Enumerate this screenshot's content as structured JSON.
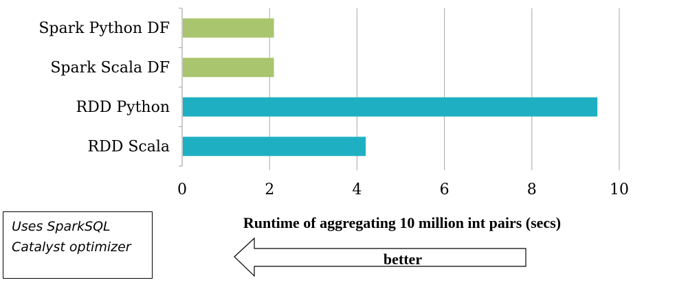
{
  "chart_data": {
    "type": "bar",
    "orientation": "horizontal",
    "categories": [
      "Spark Python DF",
      "Spark Scala DF",
      "RDD Python",
      "RDD Scala"
    ],
    "values": [
      2.1,
      2.1,
      9.5,
      4.2
    ],
    "colors": [
      "#a9c56d",
      "#a9c56d",
      "#1eb0c2",
      "#1eb0c2"
    ],
    "xlabel": "Runtime of aggregating 10 million int pairs  (secs)",
    "xlim": [
      0,
      10
    ],
    "xticks": [
      "0",
      "2",
      "4",
      "6",
      "8",
      "10"
    ],
    "grid": "vertical gridlines"
  },
  "note": {
    "line1": "Uses SparkSQL",
    "line2": "Catalyst optimizer"
  },
  "arrow": {
    "label": "better",
    "direction": "left"
  }
}
